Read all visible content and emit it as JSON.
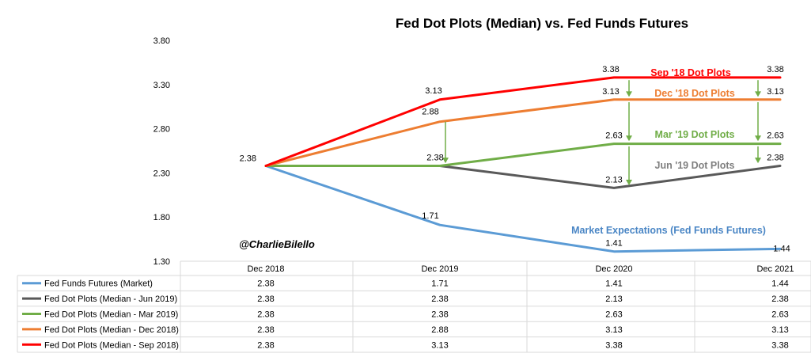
{
  "chart_data": {
    "type": "line",
    "title": "Fed Dot Plots (Median) vs. Fed Funds Futures",
    "categories": [
      "Dec 2018",
      "Dec 2019",
      "Dec 2020",
      "Dec 2021"
    ],
    "ylim": [
      1.3,
      3.8
    ],
    "yticks": [
      "3.80",
      "3.30",
      "2.80",
      "2.30",
      "1.80",
      "1.30"
    ],
    "grid": false,
    "series": [
      {
        "name": "Fed Funds Futures (Market)",
        "values": [
          2.38,
          1.71,
          1.41,
          1.44
        ],
        "labels": [
          "2.38",
          "1.71",
          "1.41",
          "1.44"
        ],
        "color": "#5b9bd5",
        "annotation": "Market Expectations (Fed Funds Futures)"
      },
      {
        "name": "Fed Dot Plots (Median - Jun 2019)",
        "values": [
          2.38,
          2.38,
          2.13,
          2.38
        ],
        "labels": [
          "2.38",
          "2.38",
          "2.13",
          "2.38"
        ],
        "color": "#595959",
        "annotation": "Jun '19 Dot Plots"
      },
      {
        "name": "Fed Dot Plots (Median - Mar 2019)",
        "values": [
          2.38,
          2.38,
          2.63,
          2.63
        ],
        "labels": [
          "2.38",
          "2.38",
          "2.63",
          "2.63"
        ],
        "color": "#70ad47",
        "annotation": "Mar '19 Dot Plots"
      },
      {
        "name": "Fed Dot Plots (Median - Dec 2018)",
        "values": [
          2.38,
          2.88,
          3.13,
          3.13
        ],
        "labels": [
          "2.38",
          "2.88",
          "3.13",
          "3.13"
        ],
        "color": "#ed7d31",
        "annotation": "Dec '18 Dot Plots"
      },
      {
        "name": "Fed Dot Plots (Median - Sep 2018)",
        "values": [
          2.38,
          3.13,
          3.38,
          3.38
        ],
        "labels": [
          "2.38",
          "3.13",
          "3.38",
          "3.38"
        ],
        "color": "#ff0000",
        "annotation": "Sep '18 Dot Plots"
      }
    ],
    "arrow_color": "#70ad47",
    "watermark": "@CharlieBilello"
  }
}
